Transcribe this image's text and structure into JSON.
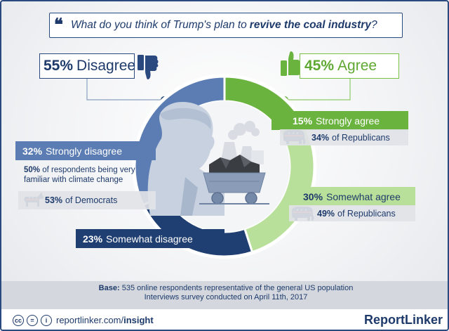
{
  "question": {
    "mark": "❝",
    "prefix": "What do you think of Trump's plan to",
    "bold": "revive the coal industry",
    "suffix": "?"
  },
  "disagree": {
    "pct": "55%",
    "label": "Disagree"
  },
  "agree": {
    "pct": "45%",
    "label": "Agree"
  },
  "segments": {
    "strongly_disagree": {
      "pct": "32%",
      "label": "Strongly disagree"
    },
    "somewhat_disagree": {
      "pct": "23%",
      "label": "Somewhat disagree"
    },
    "strongly_agree": {
      "pct": "15%",
      "label": "Strongly agree"
    },
    "somewhat_agree": {
      "pct": "30%",
      "label": "Somewhat agree"
    }
  },
  "notes": {
    "familiar_pct": "50%",
    "familiar_text": "of respondents being very familiar with climate change",
    "democrats_pct": "53%",
    "democrats_text": "of Democrats",
    "rep_strong_pct": "34%",
    "rep_strong_text": "of Republicans",
    "rep_somewhat_pct": "49%",
    "rep_somewhat_text": "of Republicans"
  },
  "base": {
    "label": "Base:",
    "line1": "535 online respondents representative of the general US population",
    "line2": "Interviews survey conducted on April 11th, 2017"
  },
  "footer": {
    "license_icons": [
      "cc",
      "=",
      "i"
    ],
    "site_prefix": "reportlinker.com/",
    "site_bold": "insight",
    "brand": "ReportLinker"
  },
  "colors": {
    "strongly_disagree": "#5b7db3",
    "somewhat_disagree": "#1f3f72",
    "strongly_agree": "#6bb33f",
    "somewhat_agree": "#b9e09a",
    "navy": "#1d3a6b"
  },
  "chart_data": {
    "type": "pie",
    "categories": [
      "Strongly agree",
      "Somewhat agree",
      "Somewhat disagree",
      "Strongly disagree"
    ],
    "values": [
      15,
      30,
      23,
      32
    ],
    "title": "What do you think of Trump's plan to revive the coal industry?",
    "groups": [
      {
        "name": "Agree",
        "value": 45
      },
      {
        "name": "Disagree",
        "value": 55
      }
    ],
    "annotations": [
      "34% of Republicans",
      "49% of Republicans",
      "50% of respondents being very familiar with climate change",
      "53% of Democrats"
    ]
  }
}
